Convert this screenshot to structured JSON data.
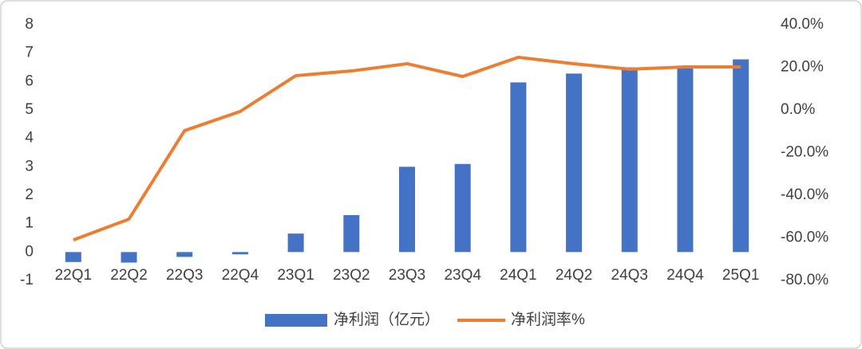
{
  "chart_data": {
    "type": "bar-line",
    "categories": [
      "22Q1",
      "22Q2",
      "22Q3",
      "22Q4",
      "23Q1",
      "23Q2",
      "23Q3",
      "23Q4",
      "24Q1",
      "24Q2",
      "24Q3",
      "24Q4",
      "25Q1"
    ],
    "series": [
      {
        "name": "净利润（亿元）",
        "type": "bar",
        "color": "#4472c4",
        "values": [
          -0.35,
          -0.37,
          -0.17,
          -0.08,
          0.65,
          1.3,
          3.0,
          3.1,
          5.97,
          6.28,
          6.5,
          6.5,
          6.78
        ]
      },
      {
        "name": "净利润率%",
        "type": "line",
        "axis": "y2",
        "color": "#ed7d31",
        "values": [
          -61,
          -51.2,
          -9.7,
          -0.7,
          16.1,
          18.3,
          21.7,
          15.7,
          24.7,
          21.7,
          19.1,
          20.2,
          20.2
        ]
      }
    ],
    "ylim": [
      -1,
      8
    ],
    "yticks": [
      -1,
      0,
      1,
      2,
      3,
      4,
      5,
      6,
      7,
      8
    ],
    "y2lim": [
      -80,
      40
    ],
    "y2ticks": [
      {
        "value": -80,
        "label": "-80.0%"
      },
      {
        "value": -60,
        "label": "-60.0%"
      },
      {
        "value": -40,
        "label": "-40.0%"
      },
      {
        "value": -20,
        "label": "-20.0%"
      },
      {
        "value": 0,
        "label": "0.0%"
      },
      {
        "value": 20,
        "label": "20.0%"
      },
      {
        "value": 40,
        "label": "40.0%"
      }
    ],
    "legend": "bottom",
    "grid": false
  }
}
